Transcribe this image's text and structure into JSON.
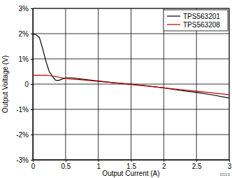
{
  "chart_data": {
    "type": "line",
    "x_label": "Output Current (A)",
    "y_label": "Output Voltage (V)",
    "annotation": "D019",
    "x": [
      0,
      0.05,
      0.1,
      0.15,
      0.2,
      0.25,
      0.3,
      0.35,
      0.4,
      0.5,
      0.6,
      0.75,
      1,
      1.25,
      1.5,
      1.75,
      2,
      2.25,
      2.5,
      2.75,
      3
    ],
    "series": [
      {
        "name": "TPS563201",
        "color": "#000000",
        "values": [
          2.0,
          1.95,
          1.85,
          1.4,
          0.9,
          0.5,
          0.3,
          0.15,
          0.15,
          0.25,
          0.25,
          0.2,
          0.12,
          0.05,
          0.0,
          -0.07,
          -0.15,
          -0.25,
          -0.33,
          -0.43,
          -0.55
        ]
      },
      {
        "name": "TPS563208",
        "color": "#c00000",
        "values": [
          0.35,
          0.35,
          0.35,
          0.35,
          0.35,
          0.34,
          0.32,
          0.3,
          0.27,
          0.22,
          0.2,
          0.17,
          0.11,
          0.05,
          -0.02,
          -0.08,
          -0.15,
          -0.22,
          -0.28,
          -0.35,
          -0.42
        ]
      }
    ],
    "xlim": [
      0,
      3
    ],
    "xticks": [
      0,
      0.5,
      1,
      1.5,
      2,
      2.5,
      3
    ],
    "ylim": [
      -3,
      3
    ],
    "yticks": [
      {
        "value": -3,
        "label": "-3%"
      },
      {
        "value": -2,
        "label": "-2%"
      },
      {
        "value": -1,
        "label": "-1%"
      },
      0,
      {
        "value": 1,
        "label": "1%"
      },
      {
        "value": 2,
        "label": "2%"
      },
      {
        "value": 3,
        "label": "3%"
      }
    ],
    "grid": true,
    "legend": "upper right"
  }
}
